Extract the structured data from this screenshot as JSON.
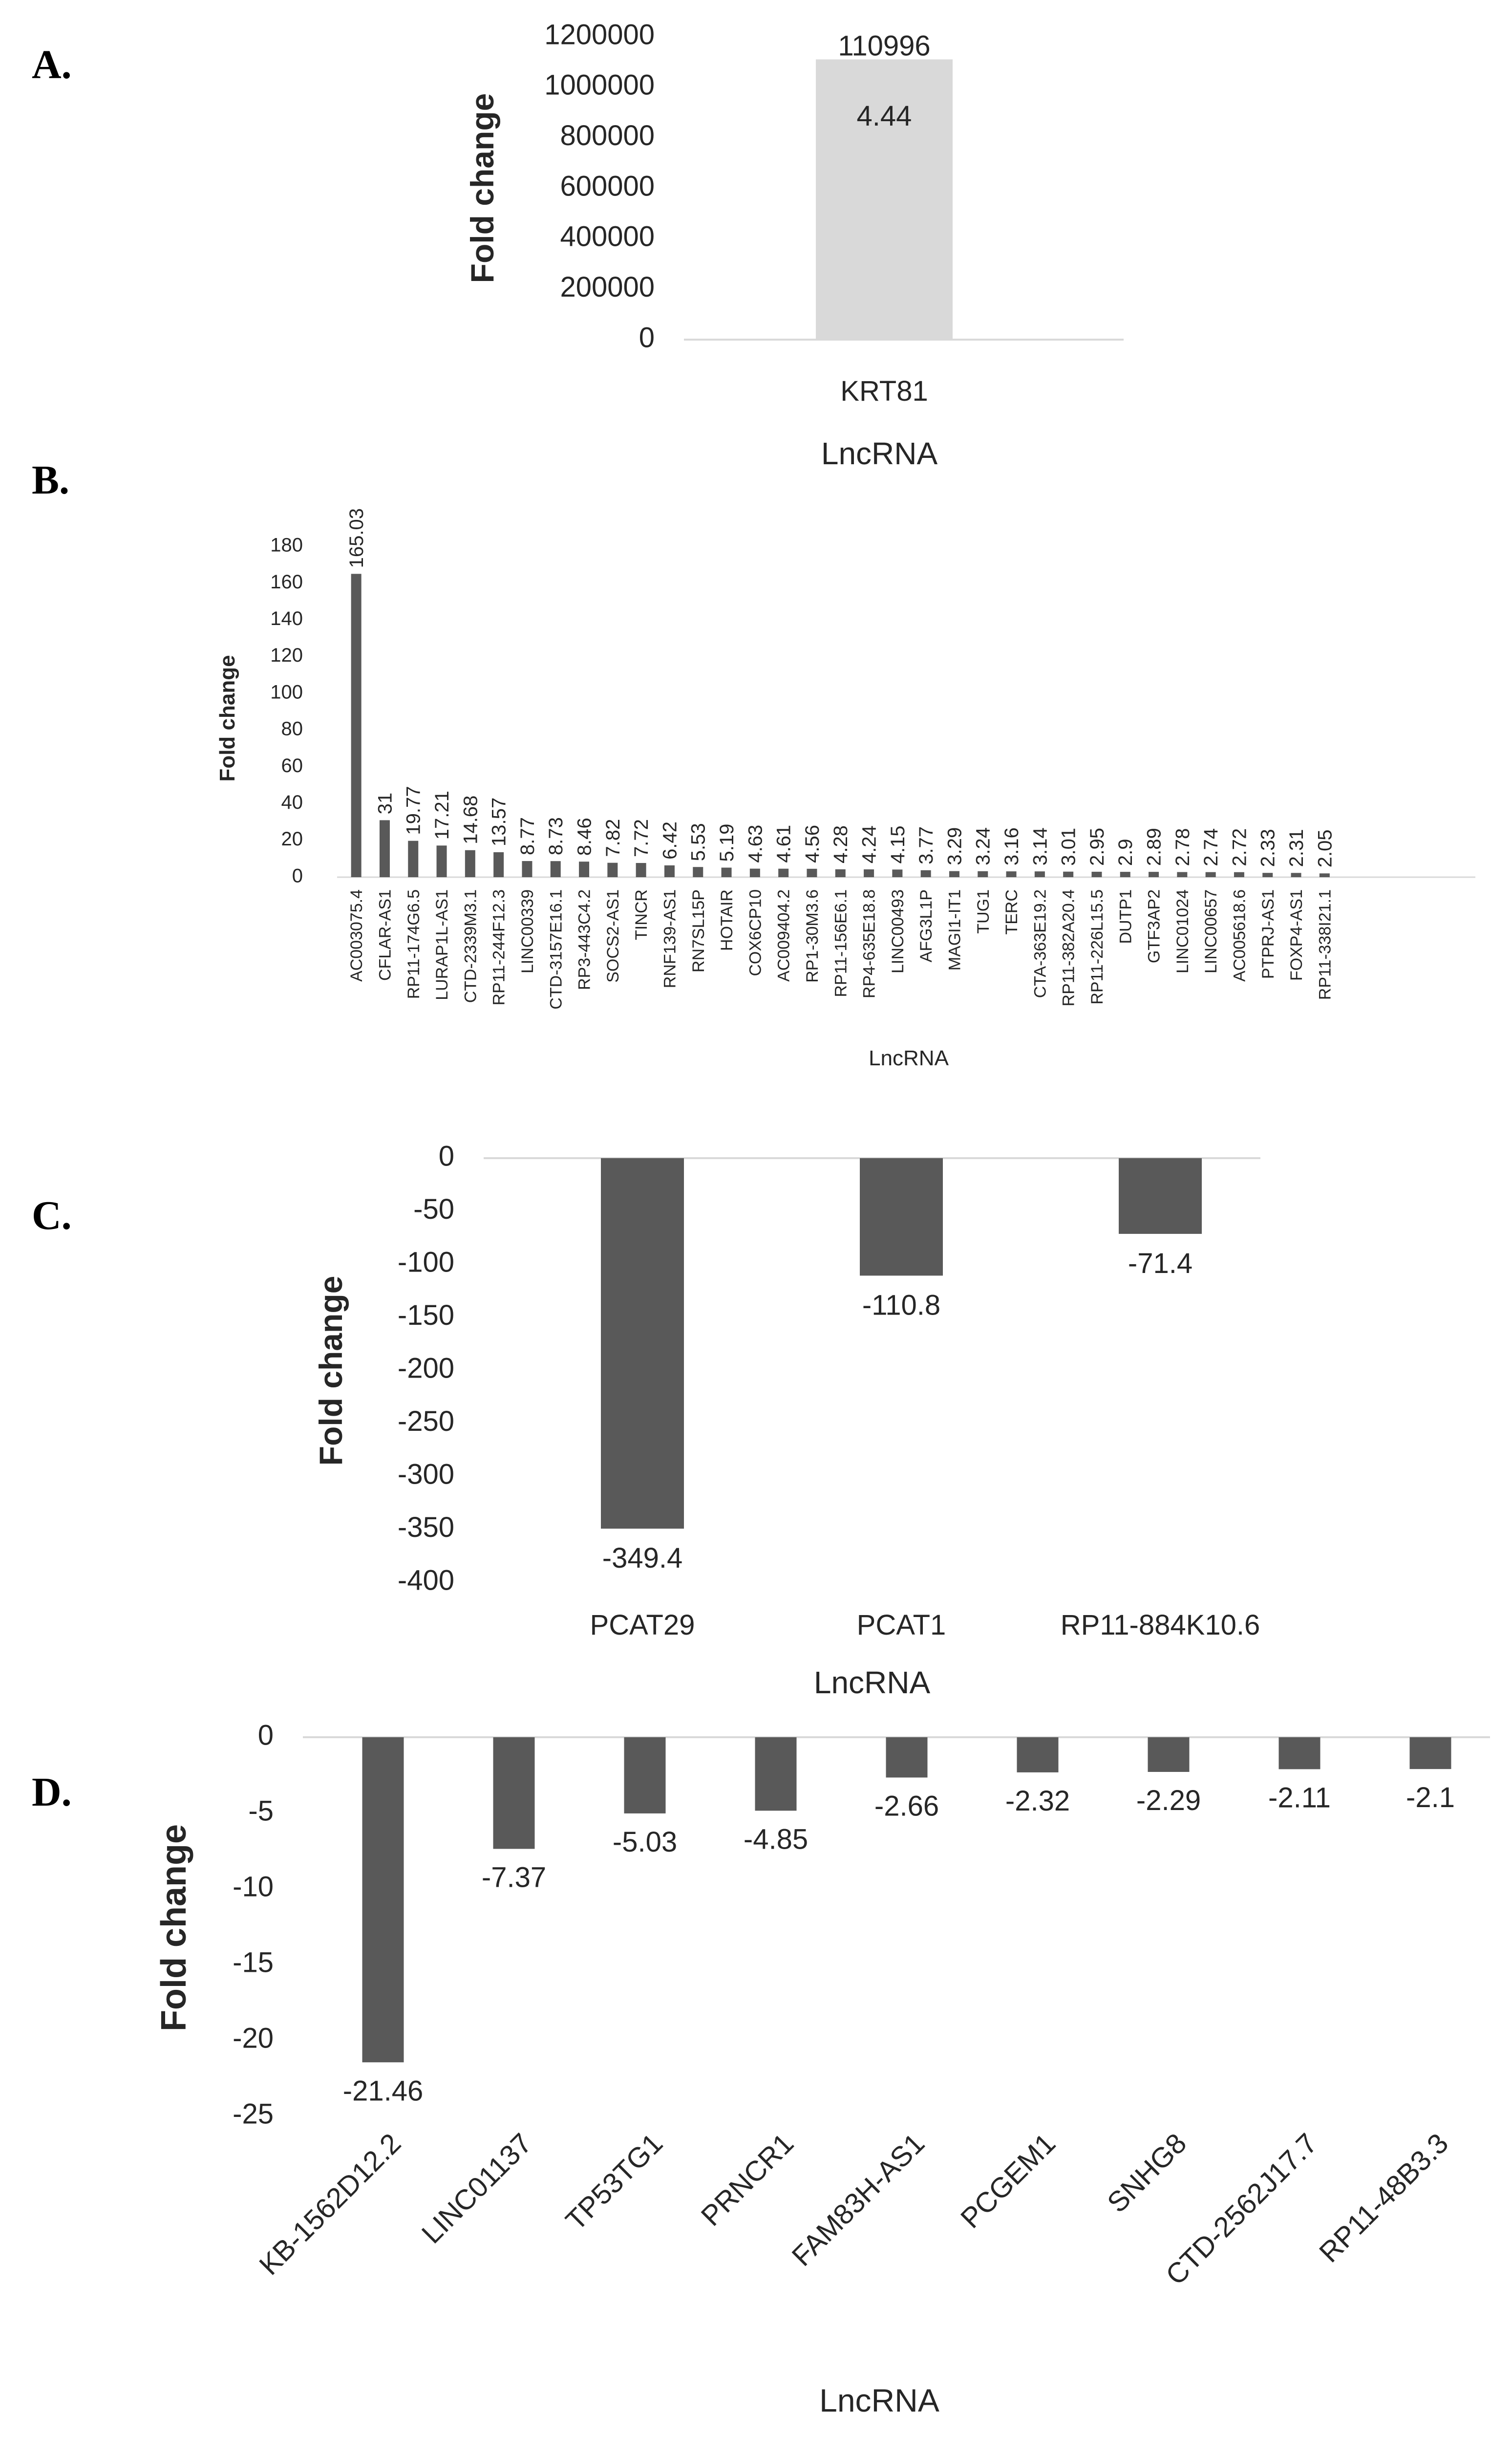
{
  "panel_labels": [
    "A.",
    "B.",
    "C.",
    "D."
  ],
  "chart_data": [
    {
      "panel": "A.",
      "type": "bar",
      "categories": [
        "KRT81"
      ],
      "values": [
        1109964.44
      ],
      "data_labels": [
        "110996\n4.44"
      ],
      "xlabel": "LncRNA",
      "ylabel": "Fold change",
      "ylim": [
        0,
        1200000
      ],
      "yticks": [
        "1200000",
        "1000000",
        "800000",
        "600000",
        "400000",
        "200000",
        "0"
      ],
      "bar_color": "#d9d9d9",
      "grid": false
    },
    {
      "panel": "B.",
      "type": "bar",
      "categories": [
        "AC003075.4",
        "CFLAR-AS1",
        "RP11-174G6.5",
        "LURAP1L-AS1",
        "CTD-2339M3.1",
        "RP11-244F12.3",
        "LINC00339",
        "CTD-3157E16.1",
        "RP3-443C4.2",
        "SOCS2-AS1",
        "TINCR",
        "RNF139-AS1",
        "RN7SL15P",
        "HOTAIR",
        "COX6CP10",
        "AC009404.2",
        "RP1-30M3.6",
        "RP11-156E6.1",
        "RP4-635E18.8",
        "LINC00493",
        "AFG3L1P",
        "MAGI1-IT1",
        "TUG1",
        "TERC",
        "CTA-363E19.2",
        "RP11-382A20.4",
        "RP11-226L15.5",
        "DUTP1",
        "GTF3AP2",
        "LINC01024",
        "LINC00657",
        "AC005618.6",
        "PTPRJ-AS1",
        "FOXP4-AS1",
        "RP11-338I21.1"
      ],
      "values": [
        165.03,
        31,
        19.77,
        17.21,
        14.68,
        13.57,
        8.77,
        8.73,
        8.46,
        7.82,
        7.72,
        6.42,
        5.53,
        5.19,
        4.63,
        4.61,
        4.56,
        4.28,
        4.24,
        4.15,
        3.77,
        3.29,
        3.24,
        3.16,
        3.14,
        3.01,
        2.95,
        2.9,
        2.89,
        2.78,
        2.74,
        2.72,
        2.33,
        2.31,
        2.05
      ],
      "data_labels": [
        "165.03",
        "31",
        "19.77",
        "17.21",
        "14.68",
        "13.57",
        "8.77",
        "8.73",
        "8.46",
        "7.82",
        "7.72",
        "6.42",
        "5.53",
        "5.19",
        "4.63",
        "4.61",
        "4.56",
        "4.28",
        "4.24",
        "4.15",
        "3.77",
        "3.29",
        "3.24",
        "3.16",
        "3.14",
        "3.01",
        "2.95",
        "2.9",
        "2.89",
        "2.78",
        "2.74",
        "2.72",
        "2.33",
        "2.31",
        "2.05"
      ],
      "xlabel": "LncRNA",
      "ylabel": "Fold change",
      "ylim": [
        0,
        180
      ],
      "yticks": [
        "180",
        "160",
        "140",
        "120",
        "100",
        "80",
        "60",
        "40",
        "20",
        "0"
      ],
      "bar_color": "#595959",
      "grid": false
    },
    {
      "panel": "C.",
      "type": "bar",
      "categories": [
        "PCAT29",
        "PCAT1",
        "RP11-884K10.6"
      ],
      "values": [
        -349.4,
        -110.8,
        -71.4
      ],
      "data_labels": [
        "-349.4",
        "-110.8",
        "-71.4"
      ],
      "xlabel": "LncRNA",
      "ylabel": "Fold change",
      "ylim": [
        -400,
        0
      ],
      "yticks": [
        "0",
        "-50",
        "-100",
        "-150",
        "-200",
        "-250",
        "-300",
        "-350",
        "-400"
      ],
      "bar_color": "#595959",
      "grid": false
    },
    {
      "panel": "D.",
      "type": "bar",
      "categories": [
        "KB-1562D12.2",
        "LINC01137",
        "TP53TG1",
        "PRNCR1",
        "FAM83H-AS1",
        "PCGEM1",
        "SNHG8",
        "CTD-2562J17.7",
        "RP11-48B3.3"
      ],
      "values": [
        -21.46,
        -7.37,
        -5.03,
        -4.85,
        -2.66,
        -2.32,
        -2.29,
        -2.11,
        -2.1
      ],
      "data_labels": [
        "-21.46",
        "-7.37",
        "-5.03",
        "-4.85",
        "-2.66",
        "-2.32",
        "-2.29",
        "-2.11",
        "-2.1"
      ],
      "xlabel": "LncRNA",
      "ylabel": "Fold change",
      "ylim": [
        -25,
        0
      ],
      "yticks": [
        "0",
        "-5",
        "-10",
        "-15",
        "-20",
        "-25"
      ],
      "bar_color": "#595959",
      "grid": false
    }
  ]
}
